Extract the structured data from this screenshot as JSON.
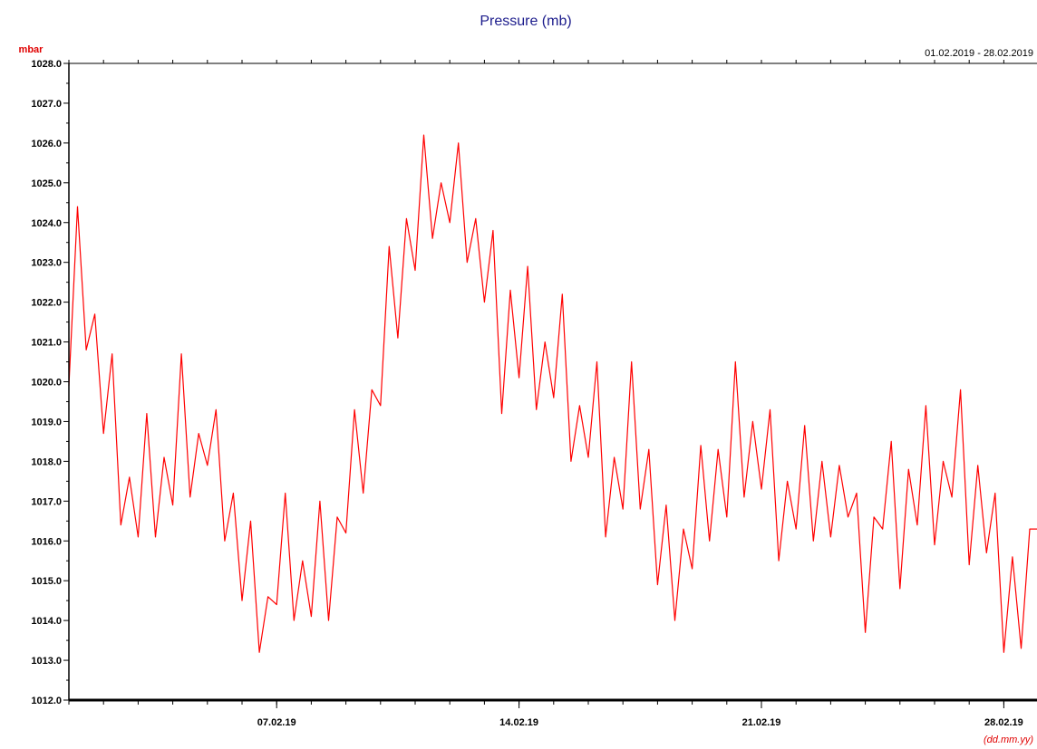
{
  "chart_data": {
    "type": "line",
    "title": "Pressure (mb)",
    "ylabel": "mbar",
    "xlabel": "(dd.mm.yy)",
    "date_range": "01.02.2019 - 28.02.2019",
    "ylim": [
      1012.0,
      1028.0
    ],
    "y_ticks": [
      "1028.0",
      "1027.0",
      "1026.0",
      "1025.0",
      "1024.0",
      "1023.0",
      "1022.0",
      "1021.0",
      "1020.0",
      "1019.0",
      "1018.0",
      "1017.0",
      "1016.0",
      "1015.0",
      "1014.0",
      "1013.0",
      "1012.0"
    ],
    "xlim": [
      "2019-02-01",
      "2019-02-28T23:00"
    ],
    "x_ticks": [
      {
        "date": "2019-02-07",
        "label": "07.02.19"
      },
      {
        "date": "2019-02-14",
        "label": "14.02.19"
      },
      {
        "date": "2019-02-21",
        "label": "21.02.19"
      },
      {
        "date": "2019-02-28",
        "label": "28.02.19"
      }
    ],
    "grid": false,
    "colors": {
      "line": "#ff0000",
      "title": "#1c1c8c",
      "unit": "#e00000",
      "axis": "#000000"
    },
    "series": [
      {
        "x": [
          "2019-02-01T00:00",
          "2019-02-01T06:00",
          "2019-02-01T12:00",
          "2019-02-01T18:00",
          "2019-02-02T00:00",
          "2019-02-02T06:00",
          "2019-02-02T12:00",
          "2019-02-02T18:00",
          "2019-02-03T00:00",
          "2019-02-03T06:00",
          "2019-02-03T12:00",
          "2019-02-03T18:00",
          "2019-02-04T00:00",
          "2019-02-04T06:00",
          "2019-02-04T12:00",
          "2019-02-04T18:00",
          "2019-02-05T00:00",
          "2019-02-05T06:00",
          "2019-02-05T12:00",
          "2019-02-05T18:00",
          "2019-02-06T00:00",
          "2019-02-06T06:00",
          "2019-02-06T12:00",
          "2019-02-06T18:00",
          "2019-02-07T00:00",
          "2019-02-07T06:00",
          "2019-02-07T12:00",
          "2019-02-07T18:00",
          "2019-02-08T00:00",
          "2019-02-08T06:00",
          "2019-02-08T12:00",
          "2019-02-08T18:00",
          "2019-02-09T00:00",
          "2019-02-09T06:00",
          "2019-02-09T12:00",
          "2019-02-09T18:00",
          "2019-02-10T00:00",
          "2019-02-10T06:00",
          "2019-02-10T12:00",
          "2019-02-10T18:00",
          "2019-02-11T00:00",
          "2019-02-11T06:00",
          "2019-02-11T12:00",
          "2019-02-11T18:00",
          "2019-02-12T00:00",
          "2019-02-12T06:00",
          "2019-02-12T12:00",
          "2019-02-12T18:00",
          "2019-02-13T00:00",
          "2019-02-13T06:00",
          "2019-02-13T12:00",
          "2019-02-13T18:00",
          "2019-02-14T00:00",
          "2019-02-14T06:00",
          "2019-02-14T12:00",
          "2019-02-14T18:00",
          "2019-02-15T00:00",
          "2019-02-15T06:00",
          "2019-02-15T12:00",
          "2019-02-15T18:00",
          "2019-02-16T00:00",
          "2019-02-16T06:00",
          "2019-02-16T12:00",
          "2019-02-16T18:00",
          "2019-02-17T00:00",
          "2019-02-17T06:00",
          "2019-02-17T12:00",
          "2019-02-17T18:00",
          "2019-02-18T00:00",
          "2019-02-18T06:00",
          "2019-02-18T12:00",
          "2019-02-18T18:00",
          "2019-02-19T00:00",
          "2019-02-19T06:00",
          "2019-02-19T12:00",
          "2019-02-19T18:00",
          "2019-02-20T00:00",
          "2019-02-20T06:00",
          "2019-02-20T12:00",
          "2019-02-20T18:00",
          "2019-02-21T00:00",
          "2019-02-21T06:00",
          "2019-02-21T12:00",
          "2019-02-21T18:00",
          "2019-02-22T00:00",
          "2019-02-22T06:00",
          "2019-02-22T12:00",
          "2019-02-22T18:00",
          "2019-02-23T00:00",
          "2019-02-23T06:00",
          "2019-02-23T12:00",
          "2019-02-23T18:00",
          "2019-02-24T00:00",
          "2019-02-24T06:00",
          "2019-02-24T12:00",
          "2019-02-24T18:00",
          "2019-02-25T00:00",
          "2019-02-25T06:00",
          "2019-02-25T12:00",
          "2019-02-25T18:00",
          "2019-02-26T00:00",
          "2019-02-26T06:00",
          "2019-02-26T12:00",
          "2019-02-26T18:00",
          "2019-02-27T00:00",
          "2019-02-27T06:00",
          "2019-02-27T12:00",
          "2019-02-27T18:00",
          "2019-02-28T00:00",
          "2019-02-28T06:00",
          "2019-02-28T12:00",
          "2019-02-28T18:00",
          "2019-02-28T23:00"
        ],
        "values": [
          1019.9,
          1024.4,
          1020.8,
          1021.7,
          1018.7,
          1020.7,
          1016.4,
          1017.6,
          1016.1,
          1019.2,
          1016.1,
          1018.1,
          1016.9,
          1020.7,
          1017.1,
          1018.7,
          1017.9,
          1019.3,
          1016.0,
          1017.2,
          1014.5,
          1016.5,
          1013.2,
          1014.6,
          1014.4,
          1017.2,
          1014.0,
          1015.5,
          1014.1,
          1017.0,
          1014.0,
          1016.6,
          1016.2,
          1019.3,
          1017.2,
          1019.8,
          1019.4,
          1023.4,
          1021.1,
          1024.1,
          1022.8,
          1026.2,
          1023.6,
          1025.0,
          1024.0,
          1026.0,
          1023.0,
          1024.1,
          1022.0,
          1023.8,
          1019.2,
          1022.3,
          1020.1,
          1022.9,
          1019.3,
          1021.0,
          1019.6,
          1022.2,
          1018.0,
          1019.4,
          1018.1,
          1020.5,
          1016.1,
          1018.1,
          1016.8,
          1020.5,
          1016.8,
          1018.3,
          1014.9,
          1016.9,
          1014.0,
          1016.3,
          1015.3,
          1018.4,
          1016.0,
          1018.3,
          1016.6,
          1020.5,
          1017.1,
          1019.0,
          1017.3,
          1019.3,
          1015.5,
          1017.5,
          1016.3,
          1018.9,
          1016.0,
          1018.0,
          1016.1,
          1017.9,
          1016.6,
          1017.2,
          1013.7,
          1016.6,
          1016.3,
          1018.5,
          1014.8,
          1017.8,
          1016.4,
          1019.4,
          1015.9,
          1018.0,
          1017.1,
          1019.8,
          1015.4,
          1017.9,
          1015.7,
          1017.2,
          1013.2,
          1015.6,
          1013.3,
          1016.3,
          1016.3
        ]
      }
    ]
  }
}
